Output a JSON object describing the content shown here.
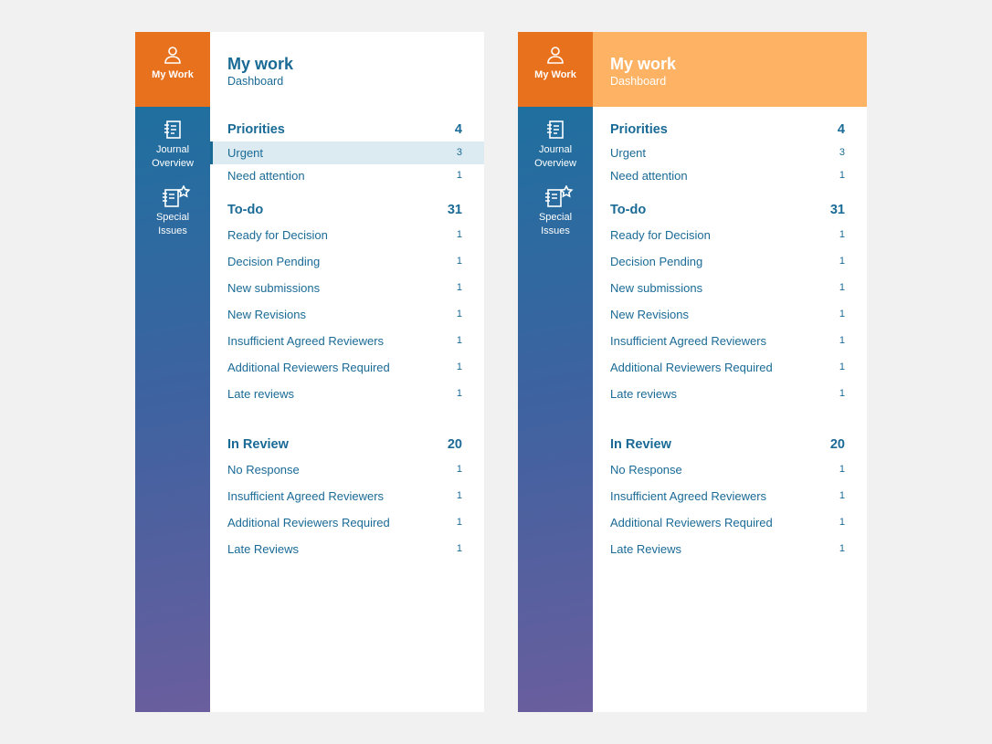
{
  "panels": [
    {
      "nav": [
        "My Work",
        "Journal Overview",
        "Special Issues"
      ],
      "header": {
        "title": "My work",
        "subtitle": "Dashboard"
      },
      "sections": [
        {
          "title": "Priorities",
          "count": 4,
          "items": [
            {
              "label": "Urgent",
              "count": 3
            },
            {
              "label": "Need attention",
              "count": 1
            }
          ]
        },
        {
          "title": "To-do",
          "count": 31,
          "items": [
            {
              "label": "Ready for Decision",
              "count": 1
            },
            {
              "label": "Decision Pending",
              "count": 1
            },
            {
              "label": "New submissions",
              "count": 1
            },
            {
              "label": "New Revisions",
              "count": 1
            },
            {
              "label": "Insufficient Agreed Reviewers",
              "count": 1
            },
            {
              "label": "Additional Reviewers Required",
              "count": 1
            },
            {
              "label": "Late reviews",
              "count": 1
            }
          ]
        },
        {
          "title": "In Review",
          "count": 20,
          "items": [
            {
              "label": "No Response",
              "count": 1
            },
            {
              "label": "Insufficient Agreed Reviewers",
              "count": 1
            },
            {
              "label": "Additional Reviewers Required",
              "count": 1
            },
            {
              "label": "Late Reviews",
              "count": 1
            }
          ]
        }
      ]
    },
    {
      "nav": [
        "My Work",
        "Journal Overview",
        "Special Issues"
      ],
      "header": {
        "title": "My work",
        "subtitle": "Dashboard"
      },
      "sections": [
        {
          "title": "Priorities",
          "count": 4,
          "items": [
            {
              "label": "Urgent",
              "count": 3
            },
            {
              "label": "Need attention",
              "count": 1
            }
          ]
        },
        {
          "title": "To-do",
          "count": 31,
          "items": [
            {
              "label": "Ready for Decision",
              "count": 1
            },
            {
              "label": "Decision Pending",
              "count": 1
            },
            {
              "label": "New submissions",
              "count": 1
            },
            {
              "label": "New Revisions",
              "count": 1
            },
            {
              "label": "Insufficient Agreed Reviewers",
              "count": 1
            },
            {
              "label": "Additional Reviewers Required",
              "count": 1
            },
            {
              "label": "Late reviews",
              "count": 1
            }
          ]
        },
        {
          "title": "In Review",
          "count": 20,
          "items": [
            {
              "label": "No Response",
              "count": 1
            },
            {
              "label": "Insufficient Agreed Reviewers",
              "count": 1
            },
            {
              "label": "Additional Reviewers Required",
              "count": 1
            },
            {
              "label": "Late Reviews",
              "count": 1
            }
          ]
        }
      ]
    }
  ]
}
